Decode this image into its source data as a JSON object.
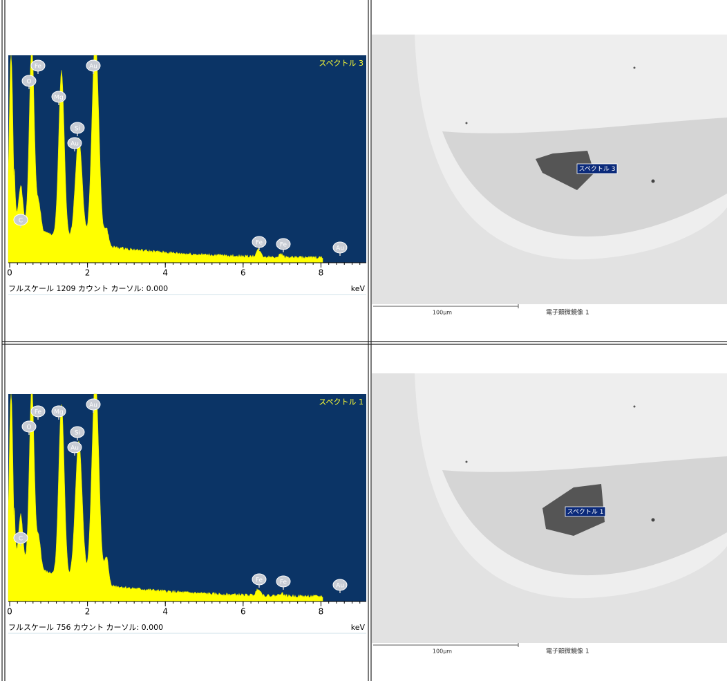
{
  "rows": [
    {
      "spectrum": {
        "title": "スペクトル 3",
        "peaks": [
          "C",
          "O",
          "Fe",
          "Mg",
          "Si",
          "Au",
          "Au",
          "Fe",
          "Fe",
          "Au"
        ],
        "xlim": [
          0,
          9.2
        ],
        "xticks": [
          0,
          2,
          4,
          6,
          8
        ],
        "footer": "フルスケール 1209 カウント カーソル: 0.000",
        "unit": "keV"
      },
      "image": {
        "label": "スペクトル 3",
        "scale": "100μm",
        "caption": "電子顕微鏡像 1"
      }
    },
    {
      "spectrum": {
        "title": "スペクトル 1",
        "peaks": [
          "C",
          "O",
          "Fe",
          "Mg",
          "Si",
          "Au",
          "Au",
          "Fe",
          "Fe",
          "Au"
        ],
        "xlim": [
          0,
          9.2
        ],
        "xticks": [
          0,
          2,
          4,
          6,
          8
        ],
        "footer": "フルスケール 756 カウント カーソル: 0.000",
        "unit": "keV"
      },
      "image": {
        "label": "スペクトル 1",
        "scale": "100μm",
        "caption": "電子顕微鏡像 1"
      }
    }
  ]
}
